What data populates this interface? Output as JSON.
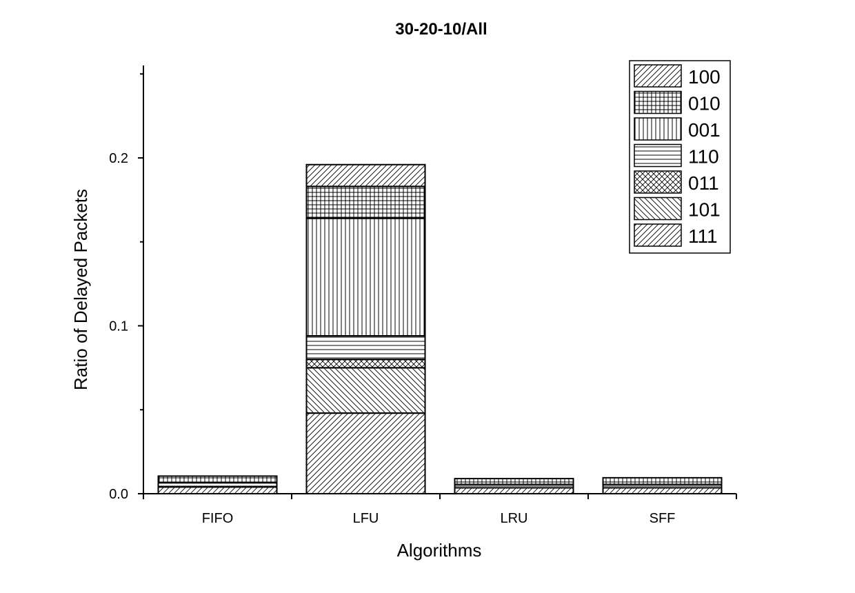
{
  "chart_data": {
    "type": "bar",
    "stacked": true,
    "title": "30-20-10/All",
    "xlabel": "Algorithms",
    "ylabel": "Ratio of Delayed Packets",
    "categories": [
      "FIFO",
      "LFU",
      "LRU",
      "SFF"
    ],
    "ylim": [
      0,
      0.25
    ],
    "yticks": [
      "0.0",
      "0.1",
      "0.2"
    ],
    "legend_position": "top-right",
    "grid": false,
    "series": [
      {
        "name": "111",
        "pattern": "diag-right",
        "values": [
          0.004,
          0.048,
          0.0035,
          0.0035
        ]
      },
      {
        "name": "101",
        "pattern": "diag-left",
        "values": [
          0.0,
          0.027,
          0.0,
          0.0
        ]
      },
      {
        "name": "011",
        "pattern": "crosshatch",
        "values": [
          0.0,
          0.005,
          0.0,
          0.0
        ]
      },
      {
        "name": "110",
        "pattern": "horizontal",
        "values": [
          0.0025,
          0.014,
          0.002,
          0.002
        ]
      },
      {
        "name": "001",
        "pattern": "vertical",
        "values": [
          0.0,
          0.07,
          0.0,
          0.0
        ]
      },
      {
        "name": "010",
        "pattern": "grid",
        "values": [
          0.004,
          0.019,
          0.0035,
          0.004
        ]
      },
      {
        "name": "100",
        "pattern": "diag-right",
        "values": [
          0.0,
          0.013,
          0.0,
          0.0
        ]
      }
    ],
    "legend_order": [
      "100",
      "010",
      "001",
      "110",
      "011",
      "101",
      "111"
    ]
  }
}
